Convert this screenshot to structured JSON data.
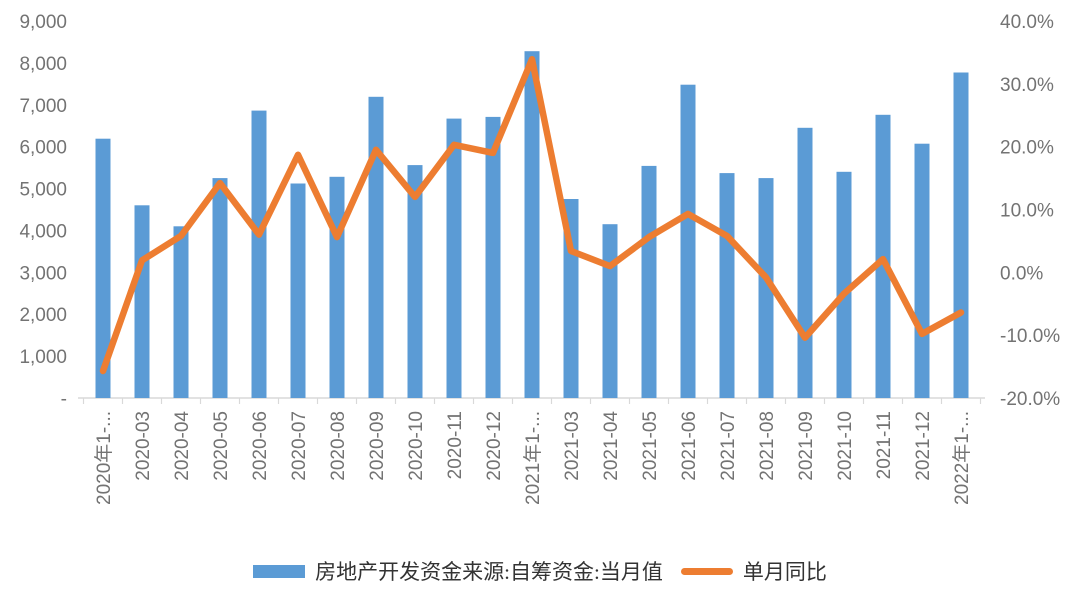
{
  "chart_data": {
    "type": "bar+line combo",
    "title": "",
    "categories": [
      "2020年1-...",
      "2020-03",
      "2020-04",
      "2020-05",
      "2020-06",
      "2020-07",
      "2020-08",
      "2020-09",
      "2020-10",
      "2020-11",
      "2020-12",
      "2021年1-...",
      "2021-03",
      "2021-04",
      "2021-05",
      "2021-06",
      "2021-07",
      "2021-08",
      "2021-09",
      "2021-10",
      "2021-11",
      "2021-12",
      "2022年1-..."
    ],
    "series": [
      {
        "name": "房地产开发资金来源:自筹资金:当月值",
        "type": "bar",
        "axis": "left",
        "color": "#5B9BD5",
        "values": [
          6190,
          4600,
          4100,
          5250,
          6860,
          5120,
          5280,
          7190,
          5560,
          6670,
          6710,
          8280,
          4750,
          4150,
          5540,
          7480,
          5370,
          5250,
          6450,
          5400,
          6760,
          6070,
          7770
        ]
      },
      {
        "name": "单月同比",
        "type": "line",
        "axis": "right",
        "color": "#ED7D31",
        "values": [
          -15.7,
          1.9,
          5.8,
          14.2,
          6.0,
          18.7,
          5.6,
          19.5,
          12.0,
          20.3,
          19.0,
          33.9,
          3.4,
          1.0,
          5.6,
          9.3,
          5.8,
          -0.8,
          -10.4,
          -3.4,
          2.1,
          -9.8,
          -6.4
        ]
      }
    ],
    "left_axis": {
      "min": 0,
      "max": 9000,
      "tick_step": 1000,
      "tick_labels": [
        "-",
        "1,000",
        "2,000",
        "3,000",
        "4,000",
        "5,000",
        "6,000",
        "7,000",
        "8,000",
        "9,000"
      ]
    },
    "right_axis": {
      "min": -20,
      "max": 40,
      "tick_step": 10,
      "tick_labels": [
        "-20.0%",
        "-10.0%",
        "0.0%",
        "10.0%",
        "20.0%",
        "30.0%",
        "40.0%"
      ]
    },
    "grid": false,
    "legend_position": "bottom",
    "axis_text_color": "#737373",
    "axis_line_color": "#D9D9D9"
  }
}
